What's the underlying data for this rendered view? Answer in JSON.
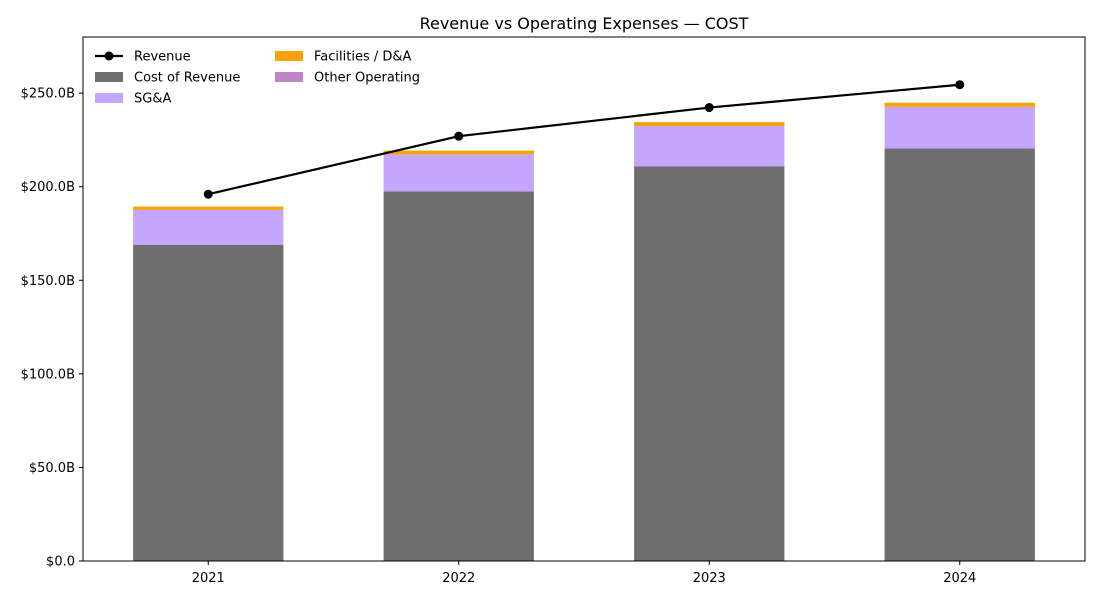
{
  "chart_data": {
    "type": "bar",
    "title": "Revenue vs Operating Expenses — COST",
    "xlabel": "",
    "ylabel": "",
    "categories": [
      "2021",
      "2022",
      "2023",
      "2024"
    ],
    "ylim": [
      0,
      280
    ],
    "yticks": [
      0,
      50,
      100,
      150,
      200,
      250
    ],
    "ytick_labels": [
      "$0.0",
      "$50.0B",
      "$100.0B",
      "$150.0B",
      "$200.0B",
      "$250.0B"
    ],
    "value_unit": "USD billions",
    "grid": false,
    "legend_position": "top-left",
    "series": [
      {
        "name": "Cost of Revenue",
        "kind": "bar",
        "color": "#6e6e6e",
        "values": [
          169.0,
          197.5,
          210.8,
          220.4
        ]
      },
      {
        "name": "SG&A",
        "kind": "bar",
        "color": "#c4a6ff",
        "values": [
          18.6,
          19.8,
          21.6,
          22.3
        ]
      },
      {
        "name": "Facilities / D&A",
        "kind": "bar",
        "color": "#f5a30a",
        "values": [
          1.8,
          2.0,
          2.1,
          2.2
        ]
      },
      {
        "name": "Other Operating",
        "kind": "bar",
        "color": "#c084c8",
        "values": [
          0.0,
          0.0,
          0.0,
          0.0
        ]
      },
      {
        "name": "Revenue",
        "kind": "line",
        "color": "#000000",
        "values": [
          196.0,
          227.0,
          242.3,
          254.5
        ]
      }
    ]
  }
}
